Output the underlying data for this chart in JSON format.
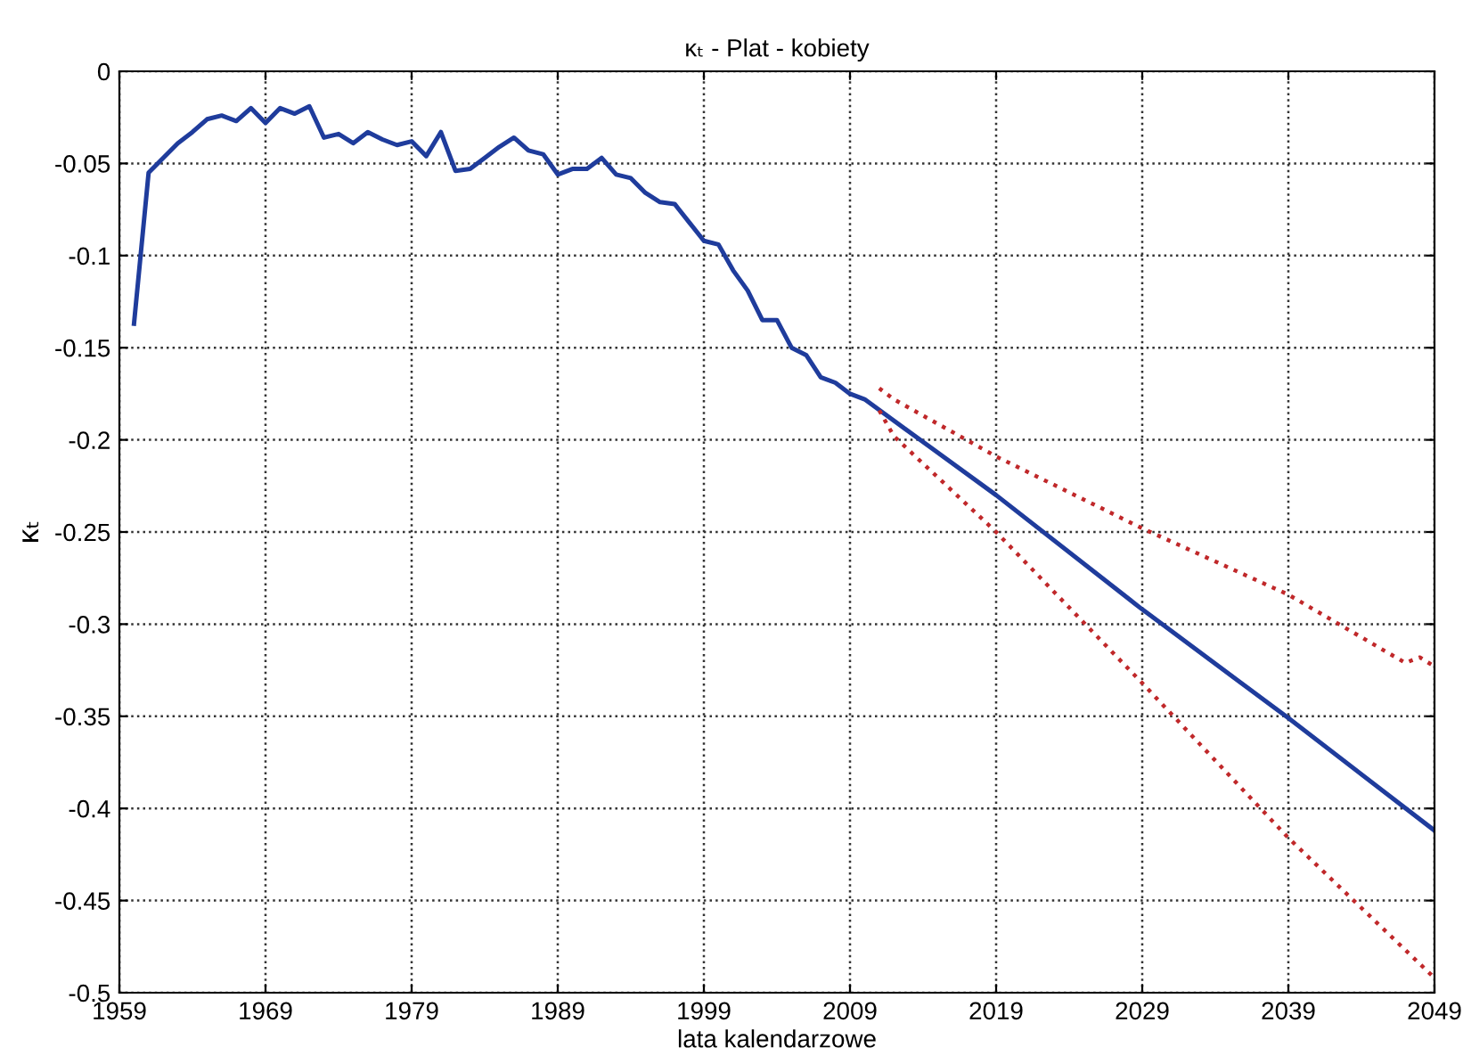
{
  "chart_data": {
    "type": "line",
    "title": "κₜ - Plat - kobiety",
    "xlabel": "lata kalendarzowe",
    "ylabel": "κₜ",
    "series": [
      {
        "color": "#1f3c9c",
        "line_style": "solid",
        "x": [
          1960,
          1961,
          1962,
          1963,
          1964,
          1965,
          1966,
          1967,
          1968,
          1969,
          1970,
          1971,
          1972,
          1973,
          1974,
          1975,
          1976,
          1977,
          1978,
          1979,
          1980,
          1981,
          1982,
          1983,
          1984,
          1985,
          1986,
          1987,
          1988,
          1989,
          1990,
          1991,
          1992,
          1993,
          1994,
          1995,
          1996,
          1997,
          1998,
          1999,
          2000,
          2001,
          2002,
          2003,
          2004,
          2005,
          2006,
          2007,
          2008,
          2009,
          2010,
          2019,
          2029,
          2039,
          2049
        ],
        "values": [
          -0.137,
          -0.055,
          -0.047,
          -0.039,
          -0.033,
          -0.026,
          -0.024,
          -0.027,
          -0.02,
          -0.028,
          -0.02,
          -0.023,
          -0.019,
          -0.036,
          -0.034,
          -0.039,
          -0.033,
          -0.037,
          -0.04,
          -0.038,
          -0.046,
          -0.033,
          -0.054,
          -0.053,
          -0.047,
          -0.041,
          -0.036,
          -0.043,
          -0.045,
          -0.056,
          -0.053,
          -0.053,
          -0.047,
          -0.056,
          -0.058,
          -0.066,
          -0.071,
          -0.072,
          -0.082,
          -0.092,
          -0.094,
          -0.108,
          -0.119,
          -0.135,
          -0.135,
          -0.15,
          -0.154,
          -0.166,
          -0.169,
          -0.175,
          -0.178,
          -0.23,
          -0.292,
          -0.351,
          -0.412
        ]
      },
      {
        "color": "#c0282a",
        "line_style": "dotted",
        "x": [
          2011,
          2012,
          2019,
          2029,
          2039,
          2047,
          2048,
          2049
        ],
        "values": [
          -0.172,
          -0.178,
          -0.209,
          -0.248,
          -0.284,
          -0.321,
          -0.318,
          -0.323
        ]
      },
      {
        "color": "#c0282a",
        "line_style": "dotted",
        "x": [
          2011,
          2012,
          2019,
          2029,
          2039,
          2049
        ],
        "values": [
          -0.184,
          -0.198,
          -0.25,
          -0.332,
          -0.416,
          -0.492
        ]
      }
    ],
    "xlim": [
      1959,
      2049
    ],
    "xticks": [
      1959,
      1969,
      1979,
      1989,
      1999,
      2009,
      2019,
      2029,
      2039,
      2049
    ],
    "ylim": [
      -0.5,
      0
    ],
    "yticks": [
      -0.5,
      -0.45,
      -0.4,
      -0.35,
      -0.3,
      -0.25,
      -0.2,
      -0.15,
      -0.1,
      -0.05,
      0
    ],
    "grid": true,
    "legend": false,
    "marker": "none"
  }
}
